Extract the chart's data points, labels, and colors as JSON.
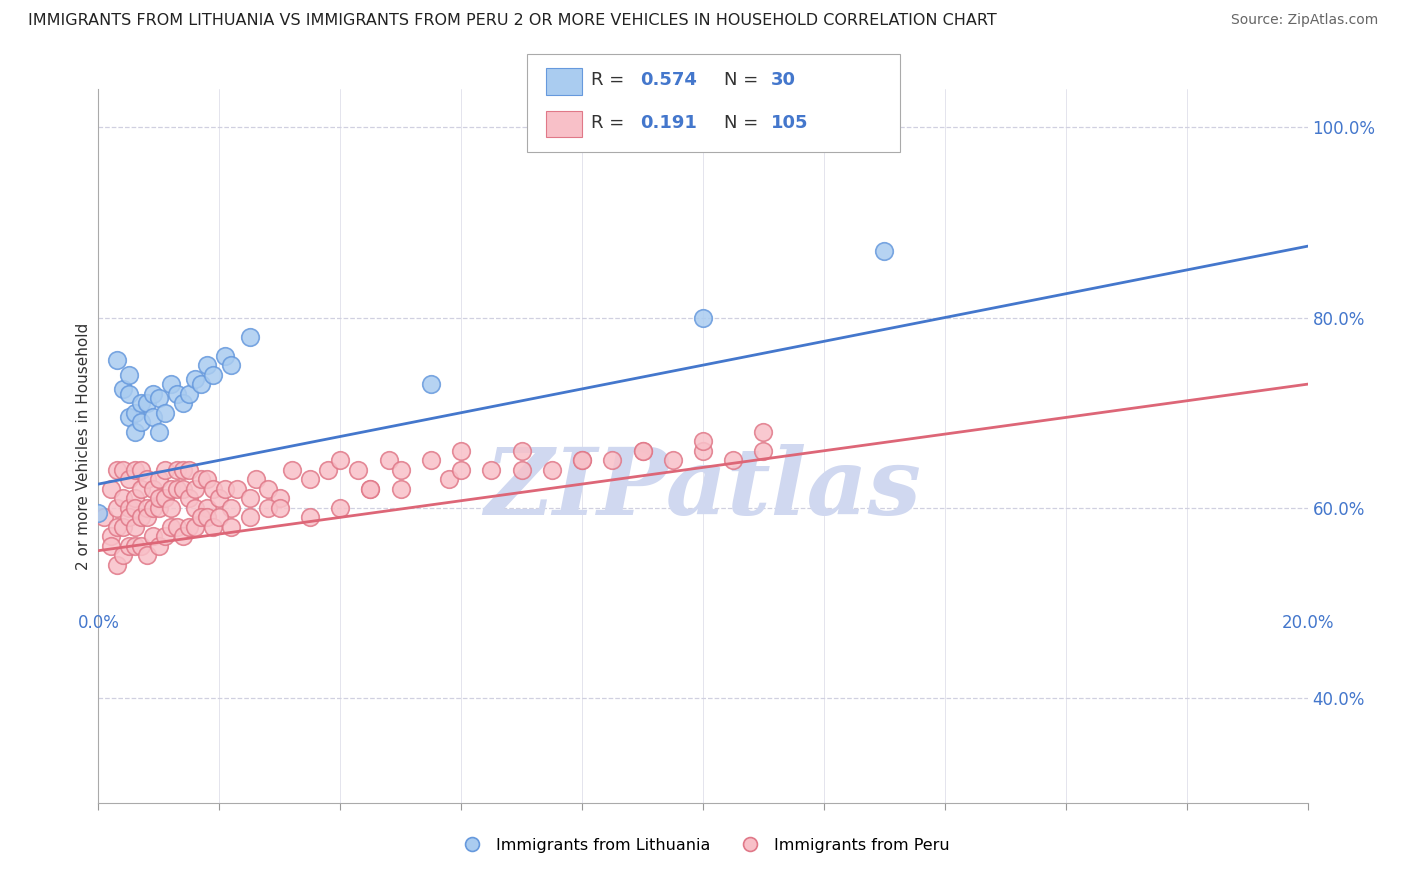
{
  "title": "IMMIGRANTS FROM LITHUANIA VS IMMIGRANTS FROM PERU 2 OR MORE VEHICLES IN HOUSEHOLD CORRELATION CHART",
  "source": "Source: ZipAtlas.com",
  "ylabel": "2 or more Vehicles in Household",
  "legend_entries": [
    {
      "label": "Immigrants from Lithuania",
      "R": 0.574,
      "N": 30,
      "color": "#aaccf0",
      "edge": "#6699dd"
    },
    {
      "label": "Immigrants from Peru",
      "R": 0.191,
      "N": 105,
      "color": "#f8c0c8",
      "edge": "#e07888"
    }
  ],
  "lithuania_x": [
    0.0,
    0.003,
    0.004,
    0.005,
    0.005,
    0.005,
    0.006,
    0.006,
    0.007,
    0.007,
    0.008,
    0.009,
    0.009,
    0.01,
    0.01,
    0.011,
    0.012,
    0.013,
    0.014,
    0.015,
    0.016,
    0.017,
    0.018,
    0.019,
    0.021,
    0.022,
    0.025,
    0.055,
    0.1,
    0.13
  ],
  "lithuania_y": [
    0.595,
    0.755,
    0.725,
    0.695,
    0.72,
    0.74,
    0.68,
    0.7,
    0.71,
    0.69,
    0.71,
    0.72,
    0.695,
    0.68,
    0.715,
    0.7,
    0.73,
    0.72,
    0.71,
    0.72,
    0.735,
    0.73,
    0.75,
    0.74,
    0.76,
    0.75,
    0.78,
    0.73,
    0.8,
    0.87
  ],
  "peru_x": [
    0.001,
    0.002,
    0.002,
    0.003,
    0.003,
    0.003,
    0.004,
    0.004,
    0.004,
    0.005,
    0.005,
    0.005,
    0.006,
    0.006,
    0.006,
    0.006,
    0.007,
    0.007,
    0.007,
    0.008,
    0.008,
    0.008,
    0.009,
    0.009,
    0.01,
    0.01,
    0.01,
    0.011,
    0.011,
    0.012,
    0.012,
    0.013,
    0.013,
    0.014,
    0.014,
    0.015,
    0.015,
    0.016,
    0.016,
    0.017,
    0.018,
    0.018,
    0.019,
    0.02,
    0.021,
    0.022,
    0.023,
    0.025,
    0.026,
    0.028,
    0.03,
    0.032,
    0.035,
    0.038,
    0.04,
    0.043,
    0.045,
    0.048,
    0.05,
    0.055,
    0.058,
    0.06,
    0.065,
    0.07,
    0.075,
    0.08,
    0.085,
    0.09,
    0.095,
    0.1,
    0.105,
    0.11,
    0.002,
    0.003,
    0.004,
    0.005,
    0.006,
    0.007,
    0.008,
    0.009,
    0.01,
    0.011,
    0.012,
    0.013,
    0.014,
    0.015,
    0.016,
    0.017,
    0.018,
    0.019,
    0.02,
    0.022,
    0.025,
    0.028,
    0.03,
    0.035,
    0.04,
    0.045,
    0.05,
    0.06,
    0.07,
    0.08,
    0.09,
    0.1,
    0.11
  ],
  "peru_y": [
    0.59,
    0.62,
    0.57,
    0.6,
    0.64,
    0.58,
    0.61,
    0.58,
    0.64,
    0.6,
    0.63,
    0.59,
    0.58,
    0.61,
    0.64,
    0.6,
    0.59,
    0.62,
    0.64,
    0.6,
    0.63,
    0.59,
    0.62,
    0.6,
    0.6,
    0.63,
    0.61,
    0.61,
    0.64,
    0.62,
    0.6,
    0.62,
    0.64,
    0.62,
    0.64,
    0.61,
    0.64,
    0.62,
    0.6,
    0.63,
    0.6,
    0.63,
    0.62,
    0.61,
    0.62,
    0.6,
    0.62,
    0.61,
    0.63,
    0.62,
    0.61,
    0.64,
    0.63,
    0.64,
    0.65,
    0.64,
    0.62,
    0.65,
    0.64,
    0.65,
    0.63,
    0.66,
    0.64,
    0.66,
    0.64,
    0.65,
    0.65,
    0.66,
    0.65,
    0.66,
    0.65,
    0.66,
    0.56,
    0.54,
    0.55,
    0.56,
    0.56,
    0.56,
    0.55,
    0.57,
    0.56,
    0.57,
    0.58,
    0.58,
    0.57,
    0.58,
    0.58,
    0.59,
    0.59,
    0.58,
    0.59,
    0.58,
    0.59,
    0.6,
    0.6,
    0.59,
    0.6,
    0.62,
    0.62,
    0.64,
    0.64,
    0.65,
    0.66,
    0.67,
    0.68
  ],
  "lith_trend": [
    0.625,
    0.875
  ],
  "peru_trend": [
    0.555,
    0.73
  ],
  "blue_line_color": "#4477cc",
  "pink_line_color": "#dd6677",
  "xlim": [
    0.0,
    0.2
  ],
  "ylim": [
    0.29,
    1.04
  ],
  "yticks": [
    0.4,
    0.6,
    0.8,
    1.0
  ],
  "ytick_labels": [
    "40.0%",
    "60.0%",
    "80.0%",
    "100.0%"
  ],
  "background_color": "#ffffff",
  "grid_color": "#d0d0e0",
  "watermark_text": "ZIPatlas",
  "watermark_color": "#d0d8f0"
}
